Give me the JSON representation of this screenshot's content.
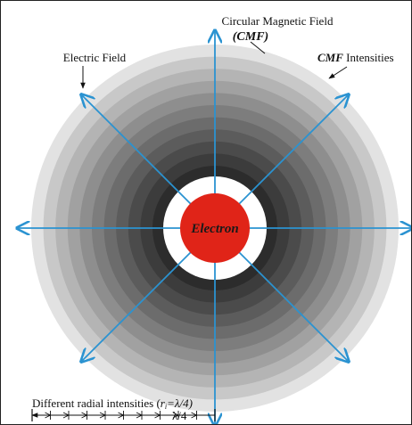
{
  "labels": {
    "cmf_title": "Circular Magnetic Field",
    "cmf_abbrev": "(CMF)",
    "electric_field": "Electric Field",
    "cmf_intensity_em": "CMF",
    "cmf_intensity_rest": " Intensities",
    "electron": "Electron",
    "radial_prefix": "Different radial intensities (",
    "radial_r": "r",
    "radial_sub": "i",
    "radial_eq": "=λ/4)",
    "lambda_quarter": "λ/4"
  },
  "colors": {
    "electron": "#e02418",
    "field_line": "#2b93d1",
    "electron_text": "#1a1a1a",
    "ring_outer": "#e2e2e2",
    "ring_inner": "#2c2c2c"
  },
  "rings": {
    "count": 11
  },
  "field_lines": {
    "count": 8
  },
  "scale": {
    "ticks": 10
  }
}
